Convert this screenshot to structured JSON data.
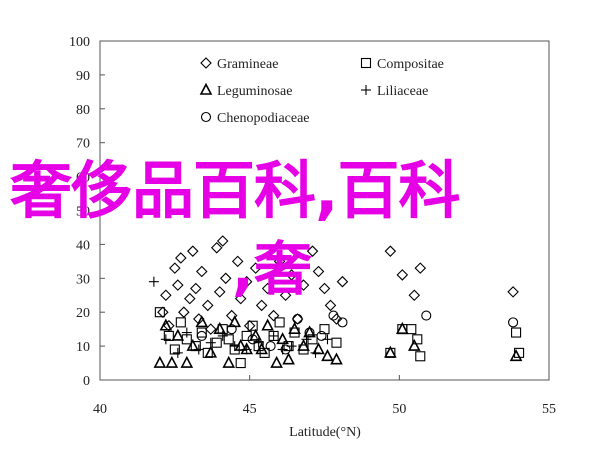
{
  "chart_data": {
    "type": "scatter",
    "xlabel": "Latitude(°N)",
    "ylabel": "",
    "xlim": [
      40,
      55
    ],
    "ylim": [
      0,
      100
    ],
    "xticks": [
      "40",
      "45",
      "50",
      "55"
    ],
    "yticks": [
      "0",
      "10",
      "20",
      "30",
      "40",
      "50",
      "60",
      "70",
      "80",
      "90",
      "100"
    ],
    "grid": false,
    "legend_position": "top-left",
    "series": [
      {
        "name": "Gramineae",
        "marker": "diamond",
        "points": [
          [
            42.1,
            20
          ],
          [
            42.2,
            25
          ],
          [
            42.3,
            16
          ],
          [
            42.5,
            33
          ],
          [
            42.6,
            28
          ],
          [
            42.7,
            36
          ],
          [
            42.8,
            20
          ],
          [
            43.0,
            24
          ],
          [
            43.1,
            38
          ],
          [
            43.2,
            27
          ],
          [
            43.3,
            18
          ],
          [
            43.4,
            32
          ],
          [
            43.6,
            22
          ],
          [
            43.7,
            15
          ],
          [
            43.9,
            39
          ],
          [
            44.0,
            26
          ],
          [
            44.1,
            41
          ],
          [
            44.2,
            30
          ],
          [
            44.4,
            19
          ],
          [
            44.6,
            35
          ],
          [
            44.7,
            24
          ],
          [
            44.9,
            29
          ],
          [
            45.0,
            16
          ],
          [
            45.2,
            33
          ],
          [
            45.4,
            22
          ],
          [
            45.6,
            27
          ],
          [
            45.8,
            19
          ],
          [
            46.0,
            35
          ],
          [
            46.2,
            25
          ],
          [
            46.4,
            31
          ],
          [
            46.6,
            18
          ],
          [
            46.8,
            28
          ],
          [
            47.1,
            38
          ],
          [
            47.3,
            32
          ],
          [
            47.5,
            27
          ],
          [
            47.7,
            22
          ],
          [
            47.9,
            18
          ],
          [
            48.1,
            29
          ],
          [
            49.7,
            38
          ],
          [
            50.1,
            31
          ],
          [
            50.5,
            25
          ],
          [
            50.7,
            33
          ],
          [
            53.8,
            26
          ]
        ]
      },
      {
        "name": "Compositae",
        "marker": "square",
        "points": [
          [
            42.0,
            20
          ],
          [
            42.3,
            13
          ],
          [
            42.5,
            9
          ],
          [
            42.7,
            17
          ],
          [
            42.9,
            12
          ],
          [
            43.2,
            10
          ],
          [
            43.4,
            14
          ],
          [
            43.6,
            8
          ],
          [
            43.9,
            11
          ],
          [
            44.1,
            15
          ],
          [
            44.3,
            12
          ],
          [
            44.5,
            9
          ],
          [
            44.7,
            5
          ],
          [
            44.9,
            13
          ],
          [
            45.1,
            16
          ],
          [
            45.3,
            10
          ],
          [
            45.5,
            8
          ],
          [
            45.8,
            13
          ],
          [
            46.0,
            17
          ],
          [
            46.3,
            10
          ],
          [
            46.5,
            14
          ],
          [
            46.8,
            9
          ],
          [
            47.1,
            12
          ],
          [
            47.5,
            15
          ],
          [
            47.9,
            11
          ],
          [
            49.7,
            8
          ],
          [
            50.1,
            15
          ],
          [
            50.4,
            15
          ],
          [
            50.6,
            12
          ],
          [
            50.7,
            7
          ],
          [
            53.9,
            14
          ],
          [
            54.0,
            8
          ]
        ]
      },
      {
        "name": "Leguminosae",
        "marker": "triangle",
        "points": [
          [
            42.0,
            5
          ],
          [
            42.2,
            16
          ],
          [
            42.4,
            5
          ],
          [
            42.6,
            13
          ],
          [
            42.9,
            5
          ],
          [
            43.1,
            10
          ],
          [
            43.4,
            17
          ],
          [
            43.7,
            8
          ],
          [
            44.0,
            15
          ],
          [
            44.3,
            5
          ],
          [
            44.5,
            17
          ],
          [
            44.7,
            10
          ],
          [
            44.9,
            9
          ],
          [
            45.2,
            13
          ],
          [
            45.4,
            9
          ],
          [
            45.6,
            16
          ],
          [
            45.9,
            5
          ],
          [
            46.1,
            12
          ],
          [
            46.3,
            6
          ],
          [
            46.5,
            15
          ],
          [
            46.8,
            10
          ],
          [
            47.0,
            14
          ],
          [
            47.3,
            9
          ],
          [
            47.6,
            7
          ],
          [
            47.9,
            6
          ],
          [
            49.7,
            8
          ],
          [
            50.1,
            15
          ],
          [
            50.5,
            10
          ],
          [
            53.9,
            7
          ]
        ]
      },
      {
        "name": "Liliaceae",
        "marker": "plus",
        "points": [
          [
            41.8,
            29
          ],
          [
            42.2,
            12
          ],
          [
            42.6,
            8
          ],
          [
            42.9,
            14
          ],
          [
            43.3,
            9
          ],
          [
            43.7,
            11
          ],
          [
            44.1,
            13
          ],
          [
            44.5,
            10
          ],
          [
            44.9,
            9
          ],
          [
            45.3,
            11
          ],
          [
            45.8,
            13
          ],
          [
            46.1,
            9
          ],
          [
            46.4,
            10
          ],
          [
            46.9,
            12
          ],
          [
            47.2,
            8
          ],
          [
            47.6,
            12
          ]
        ]
      },
      {
        "name": "Chenopodiaceae",
        "marker": "circle",
        "points": [
          [
            43.4,
            13
          ],
          [
            44.4,
            15
          ],
          [
            45.1,
            12
          ],
          [
            45.7,
            10
          ],
          [
            46.2,
            9
          ],
          [
            46.6,
            18
          ],
          [
            47.0,
            14
          ],
          [
            47.4,
            13
          ],
          [
            47.8,
            19
          ],
          [
            48.1,
            17
          ],
          [
            50.9,
            19
          ],
          [
            53.8,
            17
          ]
        ]
      }
    ]
  },
  "watermark": {
    "line1": "奢侈品百科,百科",
    "line2": ",奢"
  }
}
